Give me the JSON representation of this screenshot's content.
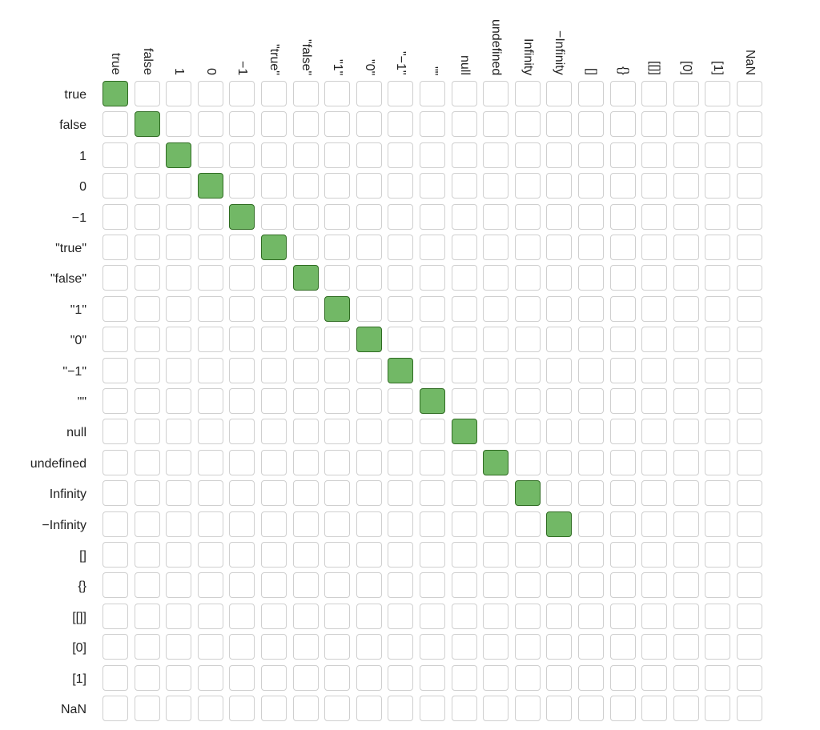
{
  "values": [
    "true",
    "false",
    "1",
    "0",
    "−1",
    "\"true\"",
    "\"false\"",
    "\"1\"",
    "\"0\"",
    "\"−1\"",
    "\"\"",
    "null",
    "undefined",
    "Infinity",
    "−Infinity",
    "[]",
    "{}",
    "[[]]",
    "[0]",
    "[1]",
    "NaN"
  ],
  "equal_pairs": [
    [
      0,
      0
    ],
    [
      1,
      1
    ],
    [
      2,
      2
    ],
    [
      3,
      3
    ],
    [
      4,
      4
    ],
    [
      5,
      5
    ],
    [
      6,
      6
    ],
    [
      7,
      7
    ],
    [
      8,
      8
    ],
    [
      9,
      9
    ],
    [
      10,
      10
    ],
    [
      11,
      11
    ],
    [
      12,
      12
    ],
    [
      13,
      13
    ],
    [
      14,
      14
    ]
  ],
  "colors": {
    "equal_fill": "#72b866",
    "equal_border": "#2f6b22",
    "empty_border": "#cfcfcf"
  }
}
